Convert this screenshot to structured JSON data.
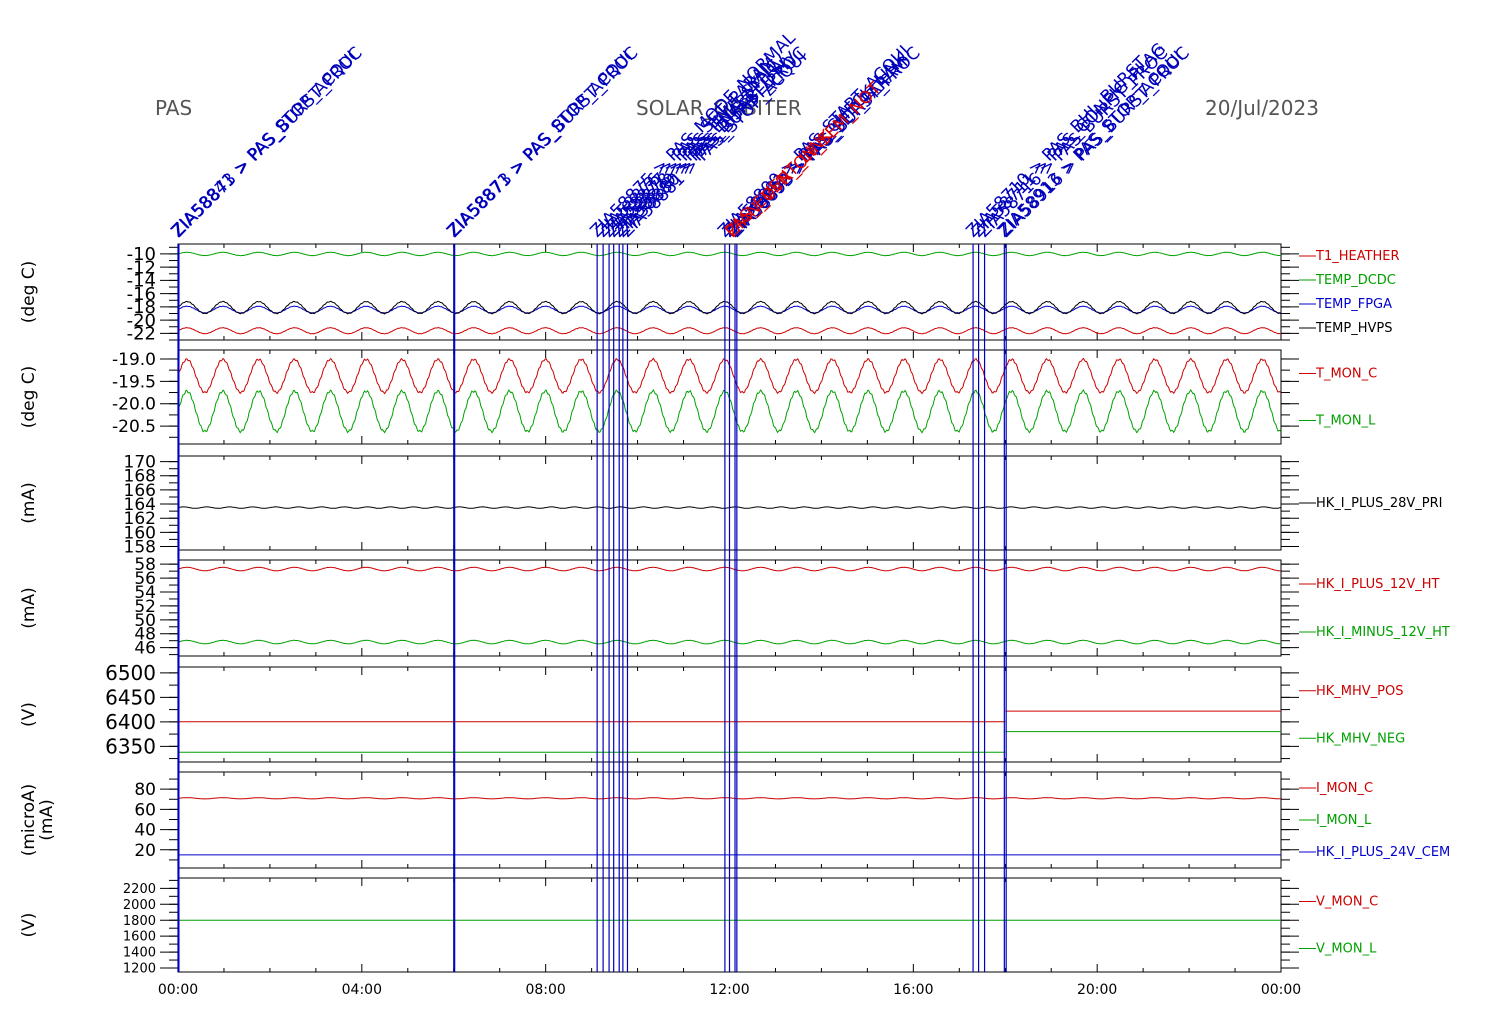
{
  "header": {
    "instrument": "PAS",
    "mission": "SOLAR_ORBITER",
    "date": "20/Jul/2023"
  },
  "colors": {
    "red": "#cc0000",
    "green": "#00a000",
    "blue": "#0000cc",
    "black": "#000000",
    "event": "#0000bb",
    "event_red": "#dd0000"
  },
  "x_axis": {
    "unit": "hours",
    "range": [
      0,
      24
    ],
    "tick_labels": [
      "00:00",
      "04:00",
      "08:00",
      "12:00",
      "16:00",
      "20:00",
      "00:00"
    ],
    "tick_hours": [
      0,
      4,
      8,
      12,
      16,
      20,
      24
    ]
  },
  "events": [
    {
      "hour": 0.0,
      "label": "ZIA58841 > PAS_STOP_ACQUI"
    },
    {
      "hour": 0.02,
      "label": "ZIA58873 > PAS_BURST_PROC"
    },
    {
      "hour": 6.0,
      "label": "ZIA58871 > PAS_STOP_ACQUI"
    },
    {
      "hour": 6.02,
      "label": "ZIA58873 > PAS_BURST_PROC"
    },
    {
      "hour": 9.12,
      "label": "ZIA58875 > PAS_MODE_NORMAL"
    },
    {
      "hour": 9.25,
      "label": "ZIA58876 > PAS_SET_PARAM"
    },
    {
      "hour": 9.38,
      "label": "ZIA58877 > PAS_TIME_SYNC"
    },
    {
      "hour": 9.48,
      "label": "ZIA58878 > PAS_ENABLE_HV"
    },
    {
      "hour": 9.6,
      "label": "ZIA58879 > PAS_DISABLE_HV"
    },
    {
      "hour": 9.68,
      "label": "ZIA58880 > PAS_BURST_PROC"
    },
    {
      "hour": 9.78,
      "label": "ZIA58881 > PAS_STOP_ACQUI"
    },
    {
      "hour": 11.9,
      "label": "ZIA58890 > PAS_START_ACQUI"
    },
    {
      "hour": 12.0,
      "label": "ZIA58891 > PAS_CHECK_LINK"
    },
    {
      "hour": 12.12,
      "label": "ZIA58892 > PAS_SET_PARAM"
    },
    {
      "hour": 12.16,
      "label": "ZIA58893 > PAS_BURST_PROC"
    },
    {
      "hour": 17.3,
      "label": "ZIA58710 > PAS_BHL_BURST"
    },
    {
      "hour": 17.42,
      "label": "ZIA58711 > PAS_CONFIG_FLAG"
    },
    {
      "hour": 17.55,
      "label": "ZIA58716 > PAS_BURST_PROC"
    },
    {
      "hour": 17.98,
      "label": "ZIA58913 > PAS_STOP_ACQUI"
    },
    {
      "hour": 18.02,
      "label": "ZIA58916 > PAS_BURST_PROC"
    }
  ],
  "event_red_labels": [
    {
      "hour": 12.08,
      "label": "ZIAN_OVR_ON_SEM_NOT"
    },
    {
      "hour": 12.05,
      "label": "PAS_EVENT_LINK"
    }
  ],
  "chart_data": [
    {
      "type": "line",
      "ylabel": "(deg C)",
      "ylim": [
        -23,
        -8.5
      ],
      "y_ticks": [
        -10,
        -12,
        -14,
        -16,
        -18,
        -20,
        -22
      ],
      "tick_labels": [
        "-10",
        "-12",
        "-14",
        "-16",
        "-18",
        "-20",
        "-22"
      ],
      "series": [
        {
          "name": "T1_HEATHER",
          "color": "#cc0000",
          "base": -21.6,
          "amp": 0.45,
          "period": 0.78
        },
        {
          "name": "TEMP_DCDC",
          "color": "#00a000",
          "base": -10.0,
          "amp": 0.25,
          "period": 0.78
        },
        {
          "name": "TEMP_FPGA",
          "color": "#0000cc",
          "base": -18.4,
          "amp": 0.5,
          "period": 0.78
        },
        {
          "name": "TEMP_HVPS",
          "color": "#000000",
          "base": -18.1,
          "amp": 0.9,
          "period": 0.78
        }
      ],
      "legend_order": [
        "T1_HEATHER",
        "TEMP_DCDC",
        "TEMP_FPGA",
        "TEMP_HVPS"
      ]
    },
    {
      "type": "line",
      "ylabel": "(deg C)",
      "ylim": [
        -20.9,
        -18.8
      ],
      "y_ticks": [
        -19.0,
        -19.5,
        -20.0,
        -20.5
      ],
      "tick_labels": [
        "-19.0",
        "-19.5",
        "-20.0",
        "-20.5"
      ],
      "series": [
        {
          "name": "T_MON_C",
          "color": "#cc0000",
          "base": -19.38,
          "amp": 0.37,
          "period": 0.78
        },
        {
          "name": "T_MON_L",
          "color": "#00a000",
          "base": -20.17,
          "amp": 0.45,
          "period": 0.78
        }
      ],
      "legend_order": [
        "T_MON_C",
        "T_MON_L"
      ]
    },
    {
      "type": "line",
      "ylabel": "(mA)",
      "ylim": [
        157.5,
        170.8
      ],
      "y_ticks": [
        170,
        168,
        166,
        164,
        162,
        160,
        158
      ],
      "tick_labels": [
        "170",
        "168",
        "166",
        "164",
        "162",
        "160",
        "158"
      ],
      "series": [
        {
          "name": "HK_I_PLUS_28V_PRI",
          "color": "#000000",
          "base": 163.5,
          "amp": 0.1,
          "period": 0.5
        }
      ],
      "legend_order": [
        "HK_I_PLUS_28V_PRI"
      ]
    },
    {
      "type": "line",
      "ylabel": "(mA)",
      "ylim": [
        44.8,
        58.6
      ],
      "y_ticks": [
        58,
        56,
        54,
        52,
        50,
        48,
        46
      ],
      "tick_labels": [
        "58",
        "56",
        "54",
        "52",
        "50",
        "48",
        "46"
      ],
      "series": [
        {
          "name": "HK_I_PLUS_12V_HT",
          "color": "#cc0000",
          "base": 57.3,
          "amp": 0.25,
          "period": 0.78
        },
        {
          "name": "HK_I_MINUS_12V_HT",
          "color": "#00a000",
          "base": 46.8,
          "amp": 0.25,
          "period": 0.78
        }
      ],
      "legend_order": [
        "HK_I_PLUS_12V_HT",
        "HK_I_MINUS_12V_HT"
      ]
    },
    {
      "type": "line",
      "ylabel": "(V)",
      "ylim": [
        6318,
        6512
      ],
      "y_ticks": [
        6500,
        6450,
        6400,
        6350
      ],
      "tick_labels": [
        "6500",
        "6450",
        "6400",
        "6350"
      ],
      "series": [
        {
          "name": "HK_MHV_POS",
          "color": "#cc0000",
          "segments": [
            [
              0,
              18,
              6400
            ],
            [
              18,
              24,
              6422
            ]
          ]
        },
        {
          "name": "HK_MHV_NEG",
          "color": "#00a000",
          "segments": [
            [
              0,
              18,
              6338
            ],
            [
              18,
              24,
              6380
            ]
          ]
        }
      ],
      "legend_order": [
        "HK_MHV_POS",
        "HK_MHV_NEG"
      ]
    },
    {
      "type": "line",
      "ylabel": "(microA)",
      "ylabel2": "(mA)",
      "ylim": [
        2,
        97
      ],
      "y_ticks": [
        80,
        60,
        40,
        20
      ],
      "tick_labels": [
        "80",
        "60",
        "40",
        "20"
      ],
      "series": [
        {
          "name": "I_MON_C",
          "color": "#cc0000",
          "base": 71,
          "amp": 0.6,
          "period": 0.78
        },
        {
          "name": "I_MON_L",
          "color": "#00a000",
          "segments": []
        },
        {
          "name": "HK_I_PLUS_24V_CEM",
          "color": "#0000cc",
          "segments": [
            [
              0,
              24,
              15
            ]
          ]
        }
      ],
      "legend_order": [
        "I_MON_C",
        "I_MON_L",
        "HK_I_PLUS_24V_CEM"
      ]
    },
    {
      "type": "line",
      "ylabel": "(V)",
      "ylim": [
        1150,
        2330
      ],
      "y_ticks": [
        2200,
        2000,
        1800,
        1600,
        1400,
        1200
      ],
      "tick_labels": [
        "2200",
        "2000",
        "1800",
        "1600",
        "1400",
        "1200"
      ],
      "series": [
        {
          "name": "V_MON_C",
          "color": "#cc0000",
          "segments": []
        },
        {
          "name": "V_MON_L",
          "color": "#00a000",
          "segments": [
            [
              0,
              24,
              1800
            ]
          ]
        }
      ],
      "legend_order": [
        "V_MON_C",
        "V_MON_L"
      ]
    }
  ]
}
